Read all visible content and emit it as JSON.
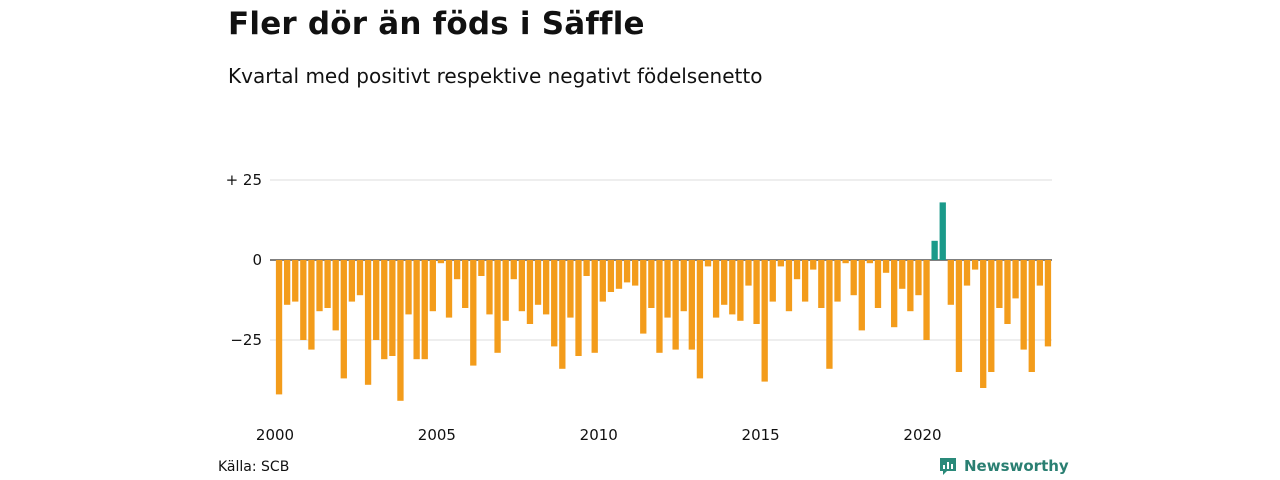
{
  "title": "Fler dör än föds i Säffle",
  "subtitle": "Kvartal med positivt respektive negativt födelsenetto",
  "source": "Källa: SCB",
  "brand": "Newsworthy",
  "colors": {
    "negative": "#f39c1b",
    "positive": "#1a9a8a",
    "grid": "#dddddd",
    "zero": "#333333"
  },
  "chart_data": {
    "type": "bar",
    "title": "Fler dör än föds i Säffle",
    "subtitle": "Kvartal med positivt respektive negativt födelsenetto",
    "x_start": 2000,
    "x_end": 2024,
    "x_ticks": [
      "2000",
      "2005",
      "2010",
      "2015",
      "2020"
    ],
    "y_ticks": [
      {
        "value": 25,
        "label": "+ 25"
      },
      {
        "value": 0,
        "label": "0"
      },
      {
        "value": -25,
        "label": "−25"
      }
    ],
    "ylim": [
      -45,
      28
    ],
    "grid": true,
    "values": [
      -42,
      -14,
      -13,
      -25,
      -28,
      -16,
      -15,
      -22,
      -37,
      -13,
      -11,
      -39,
      -25,
      -31,
      -30,
      -44,
      -17,
      -31,
      -31,
      -16,
      -1,
      -18,
      -6,
      -15,
      -33,
      -5,
      -17,
      -29,
      -19,
      -6,
      -16,
      -20,
      -14,
      -17,
      -27,
      -34,
      -18,
      -30,
      -5,
      -29,
      -13,
      -10,
      -9,
      -7,
      -8,
      -23,
      -15,
      -29,
      -18,
      -28,
      -16,
      -28,
      -37,
      -2,
      -18,
      -14,
      -17,
      -19,
      -8,
      -20,
      -38,
      -13,
      -2,
      -16,
      -6,
      -13,
      -3,
      -15,
      -34,
      -13,
      -1,
      -11,
      -22,
      -1,
      -15,
      -4,
      -21,
      -9,
      -16,
      -11,
      -25,
      6,
      18,
      -14,
      -35,
      -8,
      -3,
      -40,
      -35,
      -15,
      -20,
      -12,
      -28,
      -35,
      -8,
      -27
    ]
  }
}
